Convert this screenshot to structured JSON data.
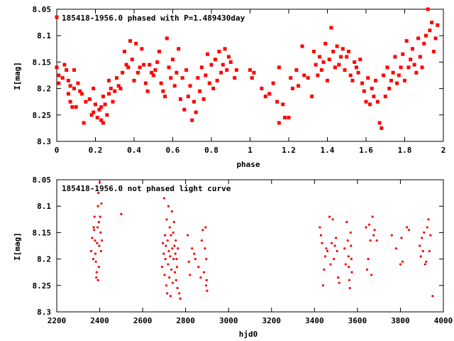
{
  "chart_data": [
    {
      "type": "scatter",
      "title": "185418-1956.0 phased with P=1.489430day",
      "xlabel": "phase",
      "ylabel": "I[mag]",
      "xlim": [
        0,
        2
      ],
      "ylim": [
        8.05,
        8.3
      ],
      "y_inverted": true,
      "grid": false,
      "legend": "none",
      "marker": "filled-square",
      "marker_color": "#ff0000",
      "x_ticks": [
        "0",
        "0.2",
        "0.4",
        "0.6",
        "0.8",
        "1",
        "1.2",
        "1.4",
        "1.6",
        "1.8",
        "2"
      ],
      "y_ticks": [
        "8.05",
        "8.1",
        "8.15",
        "8.2",
        "8.25",
        "8.3"
      ],
      "points": [
        [
          0.0,
          8.065
        ],
        [
          0.0,
          8.16
        ],
        [
          0.01,
          8.19
        ],
        [
          0.01,
          8.175
        ],
        [
          0.03,
          8.18
        ],
        [
          0.04,
          8.155
        ],
        [
          0.05,
          8.165
        ],
        [
          0.06,
          8.185
        ],
        [
          0.06,
          8.21
        ],
        [
          0.07,
          8.225
        ],
        [
          0.07,
          8.195
        ],
        [
          0.08,
          8.235
        ],
        [
          0.09,
          8.165
        ],
        [
          0.09,
          8.2
        ],
        [
          0.1,
          8.235
        ],
        [
          0.11,
          8.19
        ],
        [
          0.12,
          8.205
        ],
        [
          0.13,
          8.21
        ],
        [
          0.14,
          8.265
        ],
        [
          0.15,
          8.225
        ],
        [
          0.17,
          8.22
        ],
        [
          0.18,
          8.25
        ],
        [
          0.19,
          8.2
        ],
        [
          0.19,
          8.245
        ],
        [
          0.2,
          8.23
        ],
        [
          0.21,
          8.255
        ],
        [
          0.22,
          8.24
        ],
        [
          0.23,
          8.26
        ],
        [
          0.23,
          8.235
        ],
        [
          0.24,
          8.215
        ],
        [
          0.24,
          8.265
        ],
        [
          0.25,
          8.23
        ],
        [
          0.26,
          8.25
        ],
        [
          0.27,
          8.185
        ],
        [
          0.27,
          8.21
        ],
        [
          0.28,
          8.2
        ],
        [
          0.29,
          8.225
        ],
        [
          0.3,
          8.205
        ],
        [
          0.31,
          8.18
        ],
        [
          0.32,
          8.195
        ],
        [
          0.33,
          8.2
        ],
        [
          0.34,
          8.17
        ],
        [
          0.35,
          8.13
        ],
        [
          0.36,
          8.155
        ],
        [
          0.37,
          8.16
        ],
        [
          0.38,
          8.11
        ],
        [
          0.39,
          8.145
        ],
        [
          0.4,
          8.185
        ],
        [
          0.41,
          8.115
        ],
        [
          0.42,
          8.17
        ],
        [
          0.43,
          8.16
        ],
        [
          0.44,
          8.125
        ],
        [
          0.45,
          8.155
        ],
        [
          0.46,
          8.19
        ],
        [
          0.47,
          8.205
        ],
        [
          0.48,
          8.155
        ],
        [
          0.49,
          8.17
        ],
        [
          0.5,
          8.175
        ],
        [
          0.51,
          8.165
        ],
        [
          0.52,
          8.15
        ],
        [
          0.53,
          8.13
        ],
        [
          0.54,
          8.19
        ],
        [
          0.55,
          8.205
        ],
        [
          0.56,
          8.215
        ],
        [
          0.57,
          8.105
        ],
        [
          0.58,
          8.16
        ],
        [
          0.59,
          8.18
        ],
        [
          0.6,
          8.145
        ],
        [
          0.61,
          8.195
        ],
        [
          0.62,
          8.17
        ],
        [
          0.63,
          8.125
        ],
        [
          0.64,
          8.22
        ],
        [
          0.65,
          8.18
        ],
        [
          0.66,
          8.24
        ],
        [
          0.67,
          8.165
        ],
        [
          0.68,
          8.215
        ],
        [
          0.69,
          8.195
        ],
        [
          0.7,
          8.26
        ],
        [
          0.71,
          8.225
        ],
        [
          0.72,
          8.245
        ],
        [
          0.73,
          8.18
        ],
        [
          0.74,
          8.205
        ],
        [
          0.75,
          8.16
        ],
        [
          0.76,
          8.22
        ],
        [
          0.77,
          8.175
        ],
        [
          0.78,
          8.135
        ],
        [
          0.79,
          8.19
        ],
        [
          0.8,
          8.155
        ],
        [
          0.81,
          8.2
        ],
        [
          0.82,
          8.145
        ],
        [
          0.83,
          8.185
        ],
        [
          0.84,
          8.13
        ],
        [
          0.85,
          8.17
        ],
        [
          0.86,
          8.155
        ],
        [
          0.87,
          8.125
        ],
        [
          0.88,
          8.165
        ],
        [
          0.89,
          8.14
        ],
        [
          0.9,
          8.15
        ],
        [
          0.92,
          8.18
        ],
        [
          0.93,
          8.165
        ],
        [
          1.0,
          8.165
        ],
        [
          1.01,
          8.18
        ],
        [
          1.02,
          8.17
        ],
        [
          1.06,
          8.2
        ],
        [
          1.08,
          8.215
        ],
        [
          1.1,
          8.21
        ],
        [
          1.12,
          8.19
        ],
        [
          1.14,
          8.225
        ],
        [
          1.15,
          8.265
        ],
        [
          1.15,
          8.16
        ],
        [
          1.17,
          8.23
        ],
        [
          1.18,
          8.255
        ],
        [
          1.2,
          8.255
        ],
        [
          1.21,
          8.18
        ],
        [
          1.22,
          8.2
        ],
        [
          1.24,
          8.165
        ],
        [
          1.25,
          8.195
        ],
        [
          1.27,
          8.12
        ],
        [
          1.28,
          8.175
        ],
        [
          1.3,
          8.18
        ],
        [
          1.32,
          8.215
        ],
        [
          1.33,
          8.13
        ],
        [
          1.34,
          8.155
        ],
        [
          1.35,
          8.175
        ],
        [
          1.36,
          8.14
        ],
        [
          1.37,
          8.165
        ],
        [
          1.38,
          8.15
        ],
        [
          1.39,
          8.115
        ],
        [
          1.4,
          8.185
        ],
        [
          1.41,
          8.145
        ],
        [
          1.42,
          8.085
        ],
        [
          1.43,
          8.13
        ],
        [
          1.44,
          8.16
        ],
        [
          1.45,
          8.12
        ],
        [
          1.46,
          8.155
        ],
        [
          1.47,
          8.14
        ],
        [
          1.48,
          8.125
        ],
        [
          1.49,
          8.165
        ],
        [
          1.5,
          8.14
        ],
        [
          1.51,
          8.13
        ],
        [
          1.52,
          8.175
        ],
        [
          1.53,
          8.185
        ],
        [
          1.54,
          8.15
        ],
        [
          1.55,
          8.16
        ],
        [
          1.56,
          8.17
        ],
        [
          1.57,
          8.145
        ],
        [
          1.58,
          8.19
        ],
        [
          1.59,
          8.205
        ],
        [
          1.6,
          8.225
        ],
        [
          1.61,
          8.18
        ],
        [
          1.62,
          8.23
        ],
        [
          1.63,
          8.2
        ],
        [
          1.64,
          8.215
        ],
        [
          1.65,
          8.185
        ],
        [
          1.66,
          8.225
        ],
        [
          1.67,
          8.265
        ],
        [
          1.68,
          8.275
        ],
        [
          1.69,
          8.175
        ],
        [
          1.7,
          8.215
        ],
        [
          1.71,
          8.16
        ],
        [
          1.72,
          8.2
        ],
        [
          1.73,
          8.185
        ],
        [
          1.74,
          8.17
        ],
        [
          1.75,
          8.14
        ],
        [
          1.76,
          8.19
        ],
        [
          1.77,
          8.175
        ],
        [
          1.78,
          8.16
        ],
        [
          1.79,
          8.135
        ],
        [
          1.8,
          8.185
        ],
        [
          1.81,
          8.11
        ],
        [
          1.82,
          8.16
        ],
        [
          1.83,
          8.145
        ],
        [
          1.84,
          8.125
        ],
        [
          1.85,
          8.155
        ],
        [
          1.86,
          8.17
        ],
        [
          1.87,
          8.105
        ],
        [
          1.88,
          8.14
        ],
        [
          1.89,
          8.16
        ],
        [
          1.9,
          8.115
        ],
        [
          1.91,
          8.1
        ],
        [
          1.92,
          8.05
        ],
        [
          1.93,
          8.09
        ],
        [
          1.94,
          8.075
        ],
        [
          1.95,
          8.13
        ],
        [
          1.96,
          8.105
        ],
        [
          1.97,
          8.08
        ]
      ]
    },
    {
      "type": "scatter",
      "title": "185418-1956.0 not phased light curve",
      "xlabel": "hjd0",
      "ylabel": "I[mag]",
      "xlim": [
        2200,
        4000
      ],
      "ylim": [
        8.05,
        8.3
      ],
      "y_inverted": true,
      "grid": false,
      "legend": "none",
      "marker": "small-dot",
      "marker_color": "#ff0000",
      "x_ticks": [
        "2200",
        "2400",
        "2600",
        "2800",
        "3000",
        "3200",
        "3400",
        "3600",
        "3800",
        "4000"
      ],
      "y_ticks": [
        "8.05",
        "8.1",
        "8.15",
        "8.2",
        "8.25",
        "8.3"
      ],
      "points": [
        [
          2360,
          8.185
        ],
        [
          2365,
          8.16
        ],
        [
          2372,
          8.14
        ],
        [
          2376,
          8.12
        ],
        [
          2378,
          8.165
        ],
        [
          2380,
          8.19
        ],
        [
          2382,
          8.205
        ],
        [
          2384,
          8.235
        ],
        [
          2386,
          8.225
        ],
        [
          2388,
          8.17
        ],
        [
          2390,
          8.14
        ],
        [
          2392,
          8.1
        ],
        [
          2394,
          8.075
        ],
        [
          2396,
          8.13
        ],
        [
          2398,
          8.175
        ],
        [
          2400,
          8.055
        ],
        [
          2402,
          8.12
        ],
        [
          2404,
          8.15
        ],
        [
          2406,
          8.185
        ],
        [
          2408,
          8.095
        ],
        [
          2410,
          8.165
        ],
        [
          2370,
          8.2
        ],
        [
          2374,
          8.145
        ],
        [
          2392,
          8.24
        ],
        [
          2396,
          8.215
        ],
        [
          2500,
          8.115
        ],
        [
          2690,
          8.215
        ],
        [
          2694,
          8.17
        ],
        [
          2698,
          8.19
        ],
        [
          2700,
          8.085
        ],
        [
          2702,
          8.23
        ],
        [
          2704,
          8.155
        ],
        [
          2706,
          8.2
        ],
        [
          2708,
          8.175
        ],
        [
          2710,
          8.25
        ],
        [
          2712,
          8.125
        ],
        [
          2714,
          8.265
        ],
        [
          2716,
          8.165
        ],
        [
          2718,
          8.21
        ],
        [
          2720,
          8.1
        ],
        [
          2722,
          8.185
        ],
        [
          2724,
          8.235
        ],
        [
          2726,
          8.14
        ],
        [
          2728,
          8.195
        ],
        [
          2730,
          8.27
        ],
        [
          2732,
          8.155
        ],
        [
          2734,
          8.22
        ],
        [
          2736,
          8.11
        ],
        [
          2738,
          8.18
        ],
        [
          2740,
          8.245
        ],
        [
          2742,
          8.15
        ],
        [
          2744,
          8.2
        ],
        [
          2746,
          8.13
        ],
        [
          2748,
          8.175
        ],
        [
          2750,
          8.225
        ],
        [
          2752,
          8.19
        ],
        [
          2754,
          8.165
        ],
        [
          2756,
          8.24
        ],
        [
          2758,
          8.2
        ],
        [
          2760,
          8.215
        ],
        [
          2762,
          8.255
        ],
        [
          2764,
          8.18
        ],
        [
          2770,
          8.265
        ],
        [
          2775,
          8.275
        ],
        [
          2810,
          8.155
        ],
        [
          2815,
          8.205
        ],
        [
          2820,
          8.23
        ],
        [
          2830,
          8.18
        ],
        [
          2840,
          8.19
        ],
        [
          2845,
          8.2
        ],
        [
          2860,
          8.215
        ],
        [
          2870,
          8.235
        ],
        [
          2875,
          8.165
        ],
        [
          2880,
          8.145
        ],
        [
          2885,
          8.225
        ],
        [
          2890,
          8.18
        ],
        [
          2893,
          8.14
        ],
        [
          2896,
          8.2
        ],
        [
          2898,
          8.24
        ],
        [
          2900,
          8.26
        ],
        [
          2895,
          8.25
        ],
        [
          3425,
          8.14
        ],
        [
          3430,
          8.155
        ],
        [
          3435,
          8.17
        ],
        [
          3440,
          8.25
        ],
        [
          3445,
          8.22
        ],
        [
          3450,
          8.195
        ],
        [
          3455,
          8.18
        ],
        [
          3460,
          8.185
        ],
        [
          3470,
          8.12
        ],
        [
          3475,
          8.21
        ],
        [
          3480,
          8.17
        ],
        [
          3485,
          8.125
        ],
        [
          3490,
          8.2
        ],
        [
          3495,
          8.175
        ],
        [
          3500,
          8.16
        ],
        [
          3505,
          8.185
        ],
        [
          3510,
          8.235
        ],
        [
          3515,
          8.245
        ],
        [
          3540,
          8.18
        ],
        [
          3545,
          8.21
        ],
        [
          3550,
          8.13
        ],
        [
          3555,
          8.165
        ],
        [
          3558,
          8.195
        ],
        [
          3560,
          8.215
        ],
        [
          3562,
          8.24
        ],
        [
          3565,
          8.255
        ],
        [
          3568,
          8.15
        ],
        [
          3570,
          8.175
        ],
        [
          3572,
          8.2
        ],
        [
          3574,
          8.225
        ],
        [
          3640,
          8.14
        ],
        [
          3645,
          8.22
        ],
        [
          3650,
          8.2
        ],
        [
          3655,
          8.135
        ],
        [
          3660,
          8.165
        ],
        [
          3665,
          8.23
        ],
        [
          3670,
          8.12
        ],
        [
          3675,
          8.155
        ],
        [
          3680,
          8.145
        ],
        [
          3690,
          8.165
        ],
        [
          3760,
          8.155
        ],
        [
          3780,
          8.18
        ],
        [
          3800,
          8.21
        ],
        [
          3805,
          8.16
        ],
        [
          3810,
          8.205
        ],
        [
          3830,
          8.14
        ],
        [
          3840,
          8.145
        ],
        [
          3890,
          8.175
        ],
        [
          3895,
          8.195
        ],
        [
          3900,
          8.16
        ],
        [
          3905,
          8.185
        ],
        [
          3910,
          8.15
        ],
        [
          3915,
          8.21
        ],
        [
          3920,
          8.205
        ],
        [
          3925,
          8.14
        ],
        [
          3930,
          8.125
        ],
        [
          3935,
          8.185
        ],
        [
          3940,
          8.155
        ],
        [
          3950,
          8.27
        ]
      ]
    }
  ]
}
